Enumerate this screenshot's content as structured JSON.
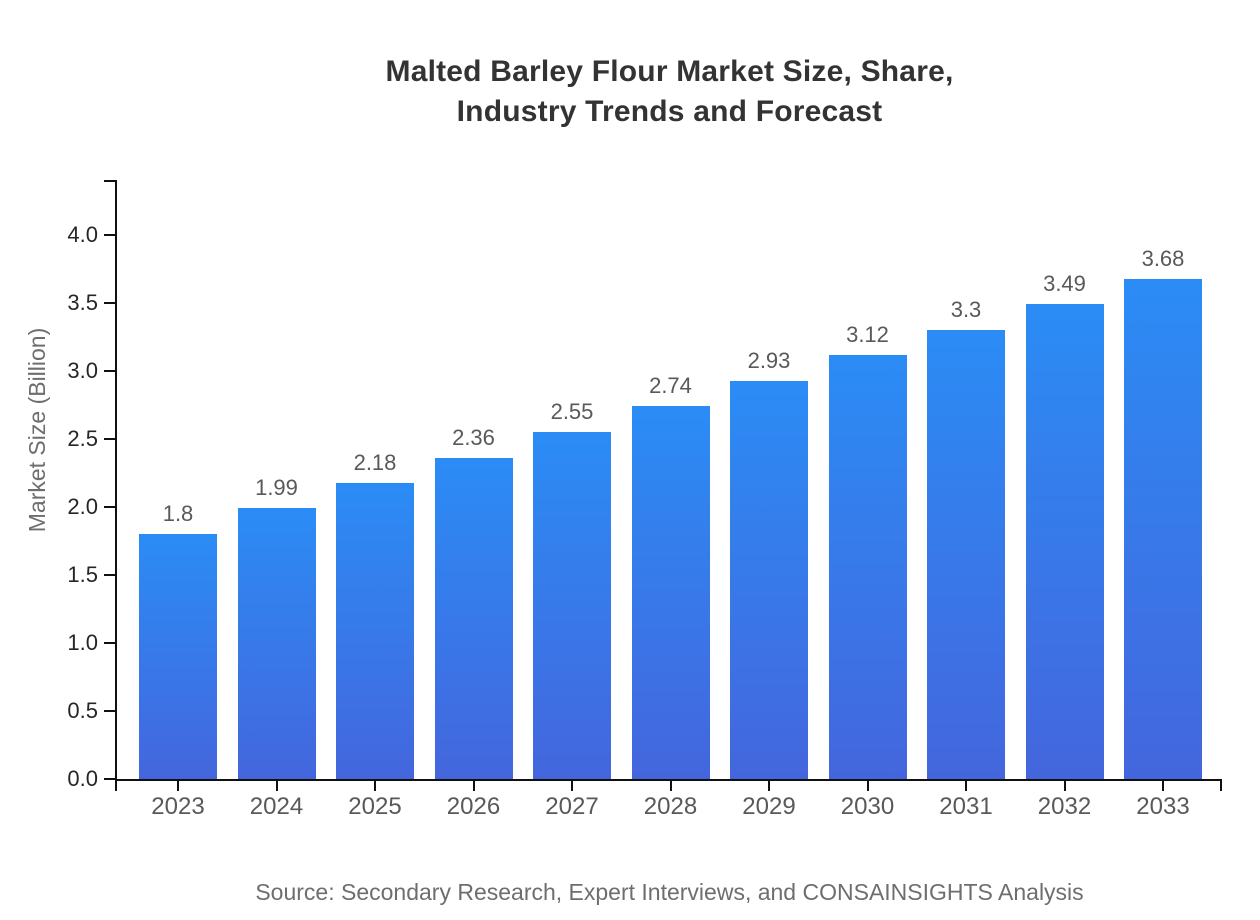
{
  "page": {
    "title_line1": "Malted Barley Flour Market Size, Share,",
    "title_line2": "Industry Trends and Forecast",
    "source": "Source: Secondary Research, Expert Interviews, and CONSAINSIGHTS Analysis"
  },
  "colors": {
    "bar_gradient_top": "#2B8CF5",
    "bar_gradient_bottom": "#4466DD",
    "axis": "#111111",
    "y_tick_label": "#262626",
    "x_tick_label": "#595959",
    "value_label": "#595959",
    "muted_text": "#6E6E6E",
    "title_text": "#333333",
    "background": "#FFFFFF"
  },
  "chart_data": {
    "type": "bar",
    "title": "Malted Barley Flour Market Size, Share, Industry Trends and Forecast",
    "categories": [
      "2023",
      "2024",
      "2025",
      "2026",
      "2027",
      "2028",
      "2029",
      "2030",
      "2031",
      "2032",
      "2033"
    ],
    "values": [
      1.8,
      1.99,
      2.18,
      2.36,
      2.55,
      2.74,
      2.93,
      3.12,
      3.3,
      3.49,
      3.68
    ],
    "value_labels": [
      "1.8",
      "1.99",
      "2.18",
      "2.36",
      "2.55",
      "2.74",
      "2.93",
      "3.12",
      "3.3",
      "3.49",
      "3.68"
    ],
    "xlabel": "",
    "ylabel": "Market Size (Billion)",
    "ylim": [
      0,
      4.4
    ],
    "yticks": [
      0.0,
      0.5,
      1.0,
      1.5,
      2.0,
      2.5,
      3.0,
      3.5,
      4.0
    ],
    "ytick_labels": [
      "0.0",
      "0.5",
      "1.0",
      "1.5",
      "2.0",
      "2.5",
      "3.0",
      "3.5",
      "4.0"
    ],
    "grid": false,
    "legend": false,
    "bar_gradient": [
      "#2B8CF5",
      "#4466DD"
    ],
    "source_note": "Source: Secondary Research, Expert Interviews, and CONSAINSIGHTS Analysis"
  }
}
